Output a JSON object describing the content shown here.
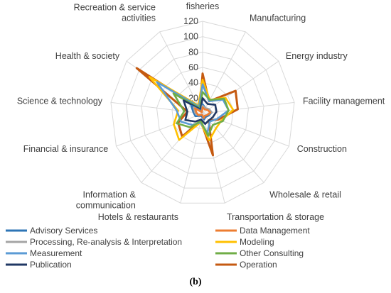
{
  "caption": "(b)",
  "chart_data": {
    "type": "radar",
    "categories": [
      "fisheries",
      "Manufacturing",
      "Energy industry",
      "Facility management",
      "Construction",
      "Wholesale & retail",
      "Transportation & storage",
      "Hotels & restaurants",
      "Information & communication",
      "Financial & insurance",
      "Science & technology",
      "Health & society",
      "Recreation & service activities"
    ],
    "rlim": [
      0,
      120
    ],
    "ticks": [
      20,
      40,
      60,
      80,
      100,
      120
    ],
    "grid": true,
    "legend_position": "bottom",
    "series": [
      {
        "name": "Advisory Services",
        "color": "#2e75b6",
        "values": [
          12,
          8,
          10,
          12,
          8,
          6,
          8,
          4,
          4,
          10,
          12,
          18,
          4
        ]
      },
      {
        "name": "Data Management",
        "color": "#ed7d31",
        "values": [
          8,
          6,
          8,
          10,
          6,
          4,
          6,
          2,
          2,
          6,
          8,
          12,
          2
        ]
      },
      {
        "name": "Processing, Re-analysis & Interpretation",
        "color": "#a5a5a5",
        "values": [
          10,
          8,
          10,
          12,
          6,
          4,
          6,
          2,
          2,
          6,
          10,
          14,
          2
        ]
      },
      {
        "name": "Modeling",
        "color": "#ffc000",
        "values": [
          44,
          20,
          36,
          40,
          26,
          26,
          36,
          12,
          46,
          40,
          32,
          84,
          12
        ]
      },
      {
        "name": "Measurement",
        "color": "#5b9bd5",
        "values": [
          38,
          18,
          32,
          34,
          20,
          14,
          26,
          12,
          20,
          30,
          34,
          72,
          10
        ]
      },
      {
        "name": "Other Consulting",
        "color": "#70ad47",
        "values": [
          28,
          20,
          34,
          34,
          28,
          20,
          30,
          10,
          24,
          36,
          24,
          46,
          8
        ]
      },
      {
        "name": "Publication",
        "color": "#203864",
        "values": [
          20,
          14,
          20,
          18,
          14,
          12,
          14,
          8,
          14,
          24,
          20,
          30,
          6
        ]
      },
      {
        "name": "Operation",
        "color": "#c55a11",
        "values": [
          52,
          18,
          52,
          46,
          22,
          12,
          56,
          10,
          40,
          34,
          20,
          104,
          8
        ]
      }
    ]
  }
}
